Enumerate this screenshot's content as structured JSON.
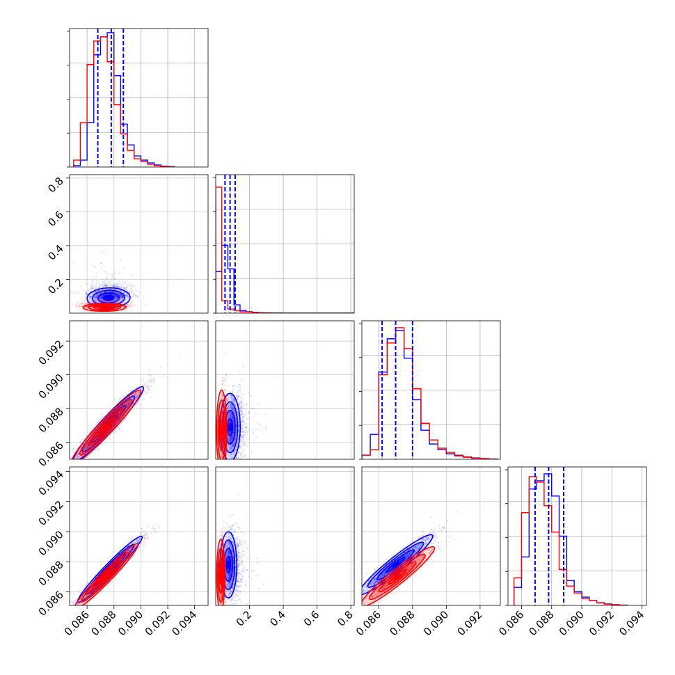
{
  "chart_data": {
    "type": "corner",
    "grid": true,
    "series": [
      {
        "color": "#0000ff"
      },
      {
        "color": "#ff0000"
      }
    ],
    "parameters": [
      {
        "range": [
          0.0847,
          0.095
        ],
        "ticks": [
          "0.086",
          "0.088",
          "0.090",
          "0.092",
          "0.094"
        ],
        "tick_values": [
          0.086,
          0.088,
          0.09,
          0.092,
          0.094
        ],
        "labels_on_x": true
      },
      {
        "range": [
          0.0,
          0.82
        ],
        "ticks": [
          "0.2",
          "0.4",
          "0.6",
          "0.8"
        ],
        "tick_values": [
          0.2,
          0.4,
          0.6,
          0.8
        ],
        "labels_on_x": true
      },
      {
        "range": [
          0.085,
          0.0932
        ],
        "ticks": [
          "0.086",
          "0.088",
          "0.090",
          "0.092"
        ],
        "tick_values": [
          0.086,
          0.088,
          0.09,
          0.092
        ],
        "labels_on_x": true
      },
      {
        "range": [
          0.0851,
          0.0943
        ],
        "ticks": [
          "0.086",
          "0.088",
          "0.090",
          "0.092",
          "0.094"
        ],
        "tick_values": [
          0.086,
          0.088,
          0.09,
          0.092,
          0.094
        ],
        "labels_on_x": true
      }
    ],
    "histograms": [
      {
        "bin_edges": [
          0.085,
          0.0855,
          0.086,
          0.0865,
          0.087,
          0.0875,
          0.088,
          0.0885,
          0.089,
          0.0895,
          0.09,
          0.0905,
          0.091,
          0.0915,
          0.092,
          0.0925
        ],
        "counts": [
          [
            0.01,
            0.05,
            0.32,
            0.81,
            0.94,
            0.97,
            0.66,
            0.31,
            0.16,
            0.08,
            0.05,
            0.03,
            0.015,
            0.005,
            0.002
          ],
          [
            0.05,
            0.32,
            0.74,
            0.91,
            0.94,
            0.76,
            0.45,
            0.24,
            0.12,
            0.06,
            0.04,
            0.02,
            0.01,
            0.005,
            0.002
          ]
        ],
        "quantiles": [
          0.0868,
          0.0878,
          0.0887
        ]
      },
      {
        "bin_edges": [
          0.0,
          0.036,
          0.072,
          0.108,
          0.144,
          0.18,
          0.216,
          0.252,
          0.288,
          0.324,
          0.36,
          0.396,
          0.432,
          0.468,
          0.504,
          0.54,
          0.576,
          0.612,
          0.648,
          0.684,
          0.72,
          0.756,
          0.792,
          0.82
        ],
        "counts": [
          [
            0.3,
            0.49,
            0.32,
            0.06,
            0.02,
            0.01,
            0.005,
            0.003,
            0.002,
            0.001,
            0.001,
            0.0,
            0.0,
            0.0,
            0.0,
            0.0,
            0.0,
            0.0,
            0.0,
            0.0,
            0.0,
            0.0,
            0.0
          ],
          [
            0.91,
            0.09,
            0.03,
            0.02,
            0.01,
            0.01,
            0.005,
            0.003,
            0.002,
            0.001,
            0.001,
            0.0,
            0.0,
            0.0,
            0.0,
            0.0,
            0.0,
            0.0,
            0.0,
            0.0,
            0.0,
            0.0,
            0.0
          ]
        ],
        "quantiles": [
          0.055,
          0.085,
          0.115
        ]
      },
      {
        "bin_edges": [
          0.085,
          0.0855,
          0.086,
          0.0865,
          0.087,
          0.0875,
          0.088,
          0.0885,
          0.089,
          0.0895,
          0.09,
          0.0905,
          0.091,
          0.0915,
          0.092,
          0.0925,
          0.093
        ],
        "counts": [
          [
            0.03,
            0.18,
            0.63,
            0.87,
            0.93,
            0.73,
            0.43,
            0.21,
            0.11,
            0.07,
            0.04,
            0.025,
            0.015,
            0.008,
            0.004,
            0.002
          ],
          [
            0.03,
            0.07,
            0.61,
            0.84,
            0.95,
            0.8,
            0.51,
            0.26,
            0.14,
            0.08,
            0.05,
            0.03,
            0.018,
            0.01,
            0.005,
            0.002
          ]
        ],
        "quantiles": [
          0.0862,
          0.087,
          0.088
        ]
      },
      {
        "bin_edges": [
          0.0855,
          0.086,
          0.0865,
          0.087,
          0.0875,
          0.088,
          0.0885,
          0.089,
          0.0895,
          0.09,
          0.0905,
          0.091,
          0.0915,
          0.092,
          0.0925,
          0.093
        ],
        "counts": [
          [
            0.13,
            0.35,
            0.84,
            0.9,
            0.95,
            0.79,
            0.5,
            0.18,
            0.1,
            0.06,
            0.035,
            0.02,
            0.01,
            0.005,
            0.002
          ],
          [
            0.2,
            0.67,
            0.93,
            0.89,
            0.72,
            0.53,
            0.26,
            0.14,
            0.09,
            0.05,
            0.035,
            0.02,
            0.01,
            0.005,
            0.002
          ]
        ],
        "quantiles": [
          0.0869,
          0.0878,
          0.0888
        ]
      }
    ],
    "pairs": [
      {
        "row": 1,
        "col": 0,
        "series": [
          {
            "center": [
              0.0876,
              0.09
            ],
            "axes": [
              0.0008,
              0.03
            ],
            "corr": 0.05
          },
          {
            "center": [
              0.0873,
              0.035
            ],
            "axes": [
              0.0008,
              0.012
            ],
            "corr": 0.05
          }
        ]
      },
      {
        "row": 2,
        "col": 0,
        "series": [
          {
            "center": [
              0.0876,
              0.0871
            ],
            "axes": [
              0.0013,
              0.0011
            ],
            "corr": 0.96
          },
          {
            "center": [
              0.0874,
              0.0869
            ],
            "axes": [
              0.0013,
              0.0011
            ],
            "corr": 0.96
          }
        ]
      },
      {
        "row": 2,
        "col": 1,
        "series": [
          {
            "center": [
              0.085,
              0.0869
            ],
            "axes": [
              0.03,
              0.001
            ],
            "corr": 0.0
          },
          {
            "center": [
              0.035,
              0.0867
            ],
            "axes": [
              0.015,
              0.0012
            ],
            "corr": 0.0
          }
        ]
      },
      {
        "row": 3,
        "col": 0,
        "series": [
          {
            "center": [
              0.0877,
              0.0875
            ],
            "axes": [
              0.0012,
              0.0011
            ],
            "corr": 0.97
          },
          {
            "center": [
              0.0874,
              0.087
            ],
            "axes": [
              0.0012,
              0.0011
            ],
            "corr": 0.97
          }
        ]
      },
      {
        "row": 3,
        "col": 1,
        "series": [
          {
            "center": [
              0.075,
              0.0878
            ],
            "axes": [
              0.025,
              0.0011
            ],
            "corr": 0.0
          },
          {
            "center": [
              0.03,
              0.0871
            ],
            "axes": [
              0.012,
              0.0012
            ],
            "corr": 0.0
          }
        ]
      },
      {
        "row": 3,
        "col": 2,
        "series": [
          {
            "center": [
              0.087,
              0.0878
            ],
            "axes": [
              0.0011,
              0.001
            ],
            "corr": 0.95
          },
          {
            "center": [
              0.0871,
              0.087
            ],
            "axes": [
              0.0011,
              0.001
            ],
            "corr": 0.95
          }
        ]
      }
    ]
  }
}
